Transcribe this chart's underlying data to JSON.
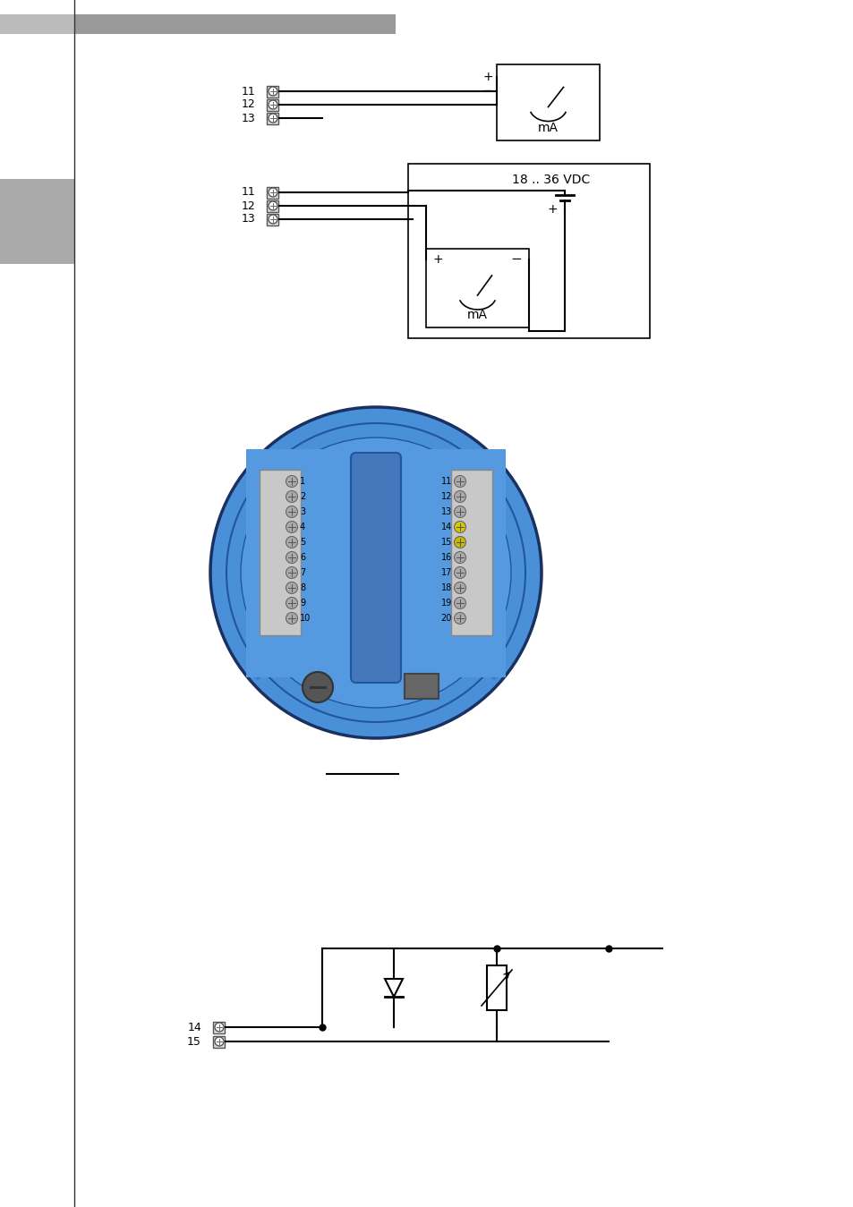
{
  "bg_color": "#ffffff",
  "header_bar_color": "#999999",
  "text_color": "#000000",
  "line_color": "#000000",
  "blue_fill": "#4a90d9",
  "blue_edge": "#1a3a6a",
  "blue_ring_edge": "#2255a0",
  "terminal_bg": "#cccccc",
  "terminal_edge": "#666666",
  "strip_bg": "#cccccc",
  "strip_edge": "#888888",
  "screw_normal": "#888888",
  "screw_yellow14": "#d4c000",
  "screw_yellow15": "#c8b800",
  "btn_left_bg": "#555555",
  "btn_right_bg": "#666666",
  "diagram1_terminals": [
    "11",
    "12",
    "13"
  ],
  "diagram2_terminals": [
    "11",
    "12",
    "13"
  ],
  "diagram3_terminals": [
    "14",
    "15"
  ],
  "left_strip_labels": [
    "1",
    "2",
    "3",
    "4",
    "5",
    "6",
    "7",
    "8",
    "9",
    "10"
  ],
  "right_strip_labels": [
    "11",
    "12",
    "13",
    "14",
    "15",
    "16",
    "17",
    "18",
    "19",
    "20"
  ]
}
